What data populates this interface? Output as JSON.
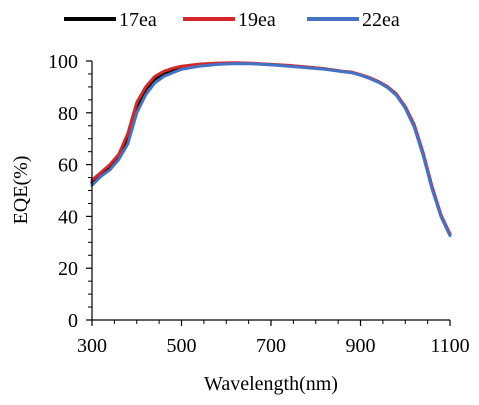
{
  "chart_data": {
    "type": "line",
    "xlabel": "Wavelength(nm)",
    "ylabel": "EQE(%)",
    "xlim": [
      300,
      1100
    ],
    "ylim": [
      0,
      100
    ],
    "x_ticks": [
      300,
      500,
      700,
      900,
      1100
    ],
    "y_ticks": [
      0,
      20,
      40,
      60,
      80,
      100
    ],
    "grid": false,
    "legend_position": "top",
    "series": [
      {
        "name": "17ea",
        "color": "#000000",
        "points": [
          [
            300,
            53
          ],
          [
            320,
            56
          ],
          [
            340,
            59
          ],
          [
            360,
            63
          ],
          [
            380,
            70
          ],
          [
            400,
            82
          ],
          [
            420,
            89
          ],
          [
            440,
            93
          ],
          [
            460,
            95
          ],
          [
            480,
            96.5
          ],
          [
            500,
            97.5
          ],
          [
            540,
            98.5
          ],
          [
            580,
            99
          ],
          [
            620,
            99.2
          ],
          [
            660,
            99
          ],
          [
            700,
            98.6
          ],
          [
            740,
            98.2
          ],
          [
            780,
            97.6
          ],
          [
            820,
            97
          ],
          [
            860,
            96
          ],
          [
            880,
            95.6
          ],
          [
            900,
            94.6
          ],
          [
            920,
            93.5
          ],
          [
            940,
            92
          ],
          [
            960,
            90
          ],
          [
            980,
            87
          ],
          [
            1000,
            82
          ],
          [
            1020,
            75
          ],
          [
            1040,
            64
          ],
          [
            1060,
            51
          ],
          [
            1080,
            40
          ],
          [
            1100,
            33
          ]
        ]
      },
      {
        "name": "19ea",
        "color": "#d62728",
        "points": [
          [
            300,
            54
          ],
          [
            320,
            57
          ],
          [
            340,
            60
          ],
          [
            360,
            64
          ],
          [
            380,
            72
          ],
          [
            400,
            84
          ],
          [
            420,
            90
          ],
          [
            440,
            94
          ],
          [
            460,
            96
          ],
          [
            480,
            97.2
          ],
          [
            500,
            98
          ],
          [
            540,
            98.8
          ],
          [
            580,
            99.2
          ],
          [
            620,
            99.3
          ],
          [
            660,
            99.1
          ],
          [
            700,
            98.7
          ],
          [
            740,
            98.3
          ],
          [
            780,
            97.7
          ],
          [
            820,
            97
          ],
          [
            860,
            96
          ],
          [
            880,
            95.7
          ],
          [
            900,
            94.7
          ],
          [
            920,
            93.6
          ],
          [
            940,
            92.1
          ],
          [
            960,
            90.2
          ],
          [
            980,
            87.3
          ],
          [
            1000,
            82.4
          ],
          [
            1020,
            75.5
          ],
          [
            1040,
            64.5
          ],
          [
            1060,
            51.5
          ],
          [
            1080,
            40.5
          ],
          [
            1100,
            33.2
          ]
        ]
      },
      {
        "name": "22ea",
        "color": "#4472c4",
        "points": [
          [
            300,
            52
          ],
          [
            320,
            55.5
          ],
          [
            340,
            58
          ],
          [
            360,
            62
          ],
          [
            380,
            68
          ],
          [
            400,
            80
          ],
          [
            420,
            87
          ],
          [
            440,
            91.5
          ],
          [
            460,
            94
          ],
          [
            480,
            95.5
          ],
          [
            500,
            96.8
          ],
          [
            540,
            98
          ],
          [
            580,
            98.7
          ],
          [
            620,
            99
          ],
          [
            660,
            98.9
          ],
          [
            700,
            98.5
          ],
          [
            740,
            98
          ],
          [
            780,
            97.4
          ],
          [
            820,
            96.8
          ],
          [
            860,
            95.9
          ],
          [
            880,
            95.5
          ],
          [
            900,
            94.5
          ],
          [
            920,
            93.3
          ],
          [
            940,
            91.8
          ],
          [
            960,
            89.8
          ],
          [
            980,
            86.8
          ],
          [
            1000,
            81.8
          ],
          [
            1020,
            74.5
          ],
          [
            1040,
            63.5
          ],
          [
            1060,
            50.5
          ],
          [
            1080,
            39.8
          ],
          [
            1100,
            32.6
          ]
        ]
      }
    ]
  }
}
